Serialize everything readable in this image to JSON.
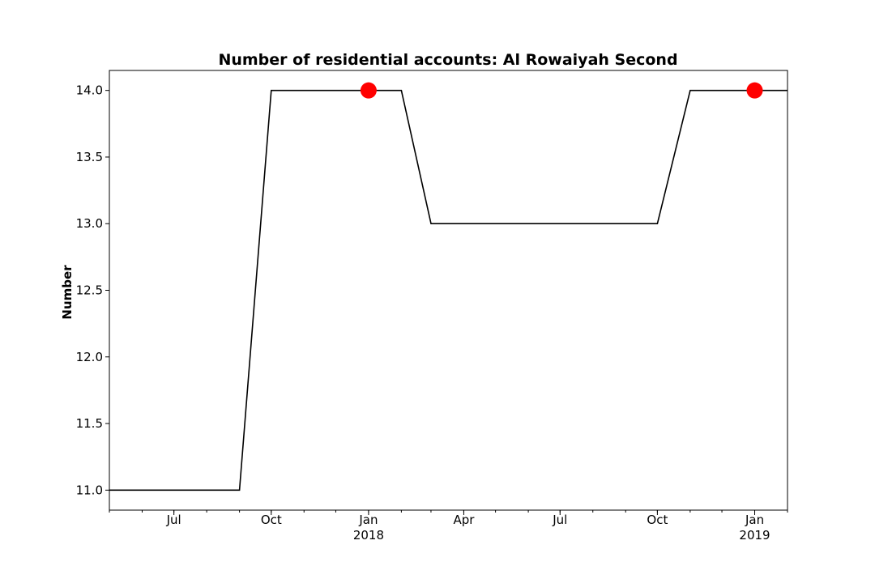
{
  "chart_data": {
    "type": "line",
    "title": "Number of residential accounts: Al Rowaiyah Second",
    "xlabel": "",
    "ylabel": "Number",
    "x": [
      "2017-05-01",
      "2017-06-01",
      "2017-07-01",
      "2017-08-01",
      "2017-09-01",
      "2017-10-01",
      "2017-11-01",
      "2017-12-01",
      "2018-01-01",
      "2018-02-01",
      "2018-03-01",
      "2018-04-01",
      "2018-05-01",
      "2018-06-01",
      "2018-07-01",
      "2018-08-01",
      "2018-09-01",
      "2018-10-01",
      "2018-11-01",
      "2018-12-01",
      "2019-01-01",
      "2019-02-01"
    ],
    "series": [
      {
        "values": [
          11,
          11,
          11,
          11,
          11,
          14,
          14,
          14,
          14,
          14,
          13,
          13,
          13,
          13,
          13,
          13,
          13,
          13,
          14,
          14,
          14,
          14
        ],
        "color": "#000000"
      }
    ],
    "highlights": [
      {
        "x": "2018-01-01",
        "y": 14,
        "color": "#ff0000"
      },
      {
        "x": "2019-01-01",
        "y": 14,
        "color": "#ff0000"
      }
    ],
    "xlim": [
      "2017-05-01",
      "2019-02-01"
    ],
    "ylim": [
      10.85,
      14.15
    ],
    "yticks": [
      11.0,
      11.5,
      12.0,
      12.5,
      13.0,
      13.5,
      14.0
    ],
    "ytick_labels": [
      "11.0",
      "11.5",
      "12.0",
      "12.5",
      "13.0",
      "13.5",
      "14.0"
    ],
    "xticks": [
      {
        "x": "2017-07-01",
        "label": "Jul",
        "year": ""
      },
      {
        "x": "2017-10-01",
        "label": "Oct",
        "year": ""
      },
      {
        "x": "2018-01-01",
        "label": "Jan",
        "year": "2018"
      },
      {
        "x": "2018-04-01",
        "label": "Apr",
        "year": ""
      },
      {
        "x": "2018-07-01",
        "label": "Jul",
        "year": ""
      },
      {
        "x": "2018-10-01",
        "label": "Oct",
        "year": ""
      },
      {
        "x": "2019-01-01",
        "label": "Jan",
        "year": "2019"
      }
    ],
    "grid": false,
    "legend": "none"
  }
}
